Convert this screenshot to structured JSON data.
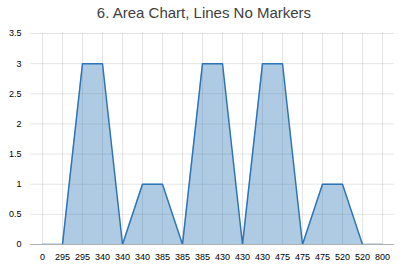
{
  "chart_data": {
    "type": "area",
    "title": "6. Area Chart, Lines No Markers",
    "categories": [
      "0",
      "295",
      "295",
      "340",
      "340",
      "340",
      "385",
      "385",
      "385",
      "430",
      "430",
      "430",
      "475",
      "475",
      "475",
      "520",
      "520",
      "800"
    ],
    "values": [
      0,
      0,
      3,
      3,
      0,
      1,
      1,
      0,
      3,
      3,
      0,
      3,
      3,
      0,
      1,
      1,
      0,
      0
    ],
    "color": "#2e75b6",
    "ylim": [
      0,
      3.5
    ],
    "yticks": [
      0,
      0.5,
      1,
      1.5,
      2,
      2.5,
      3,
      3.5
    ],
    "grid": true
  }
}
